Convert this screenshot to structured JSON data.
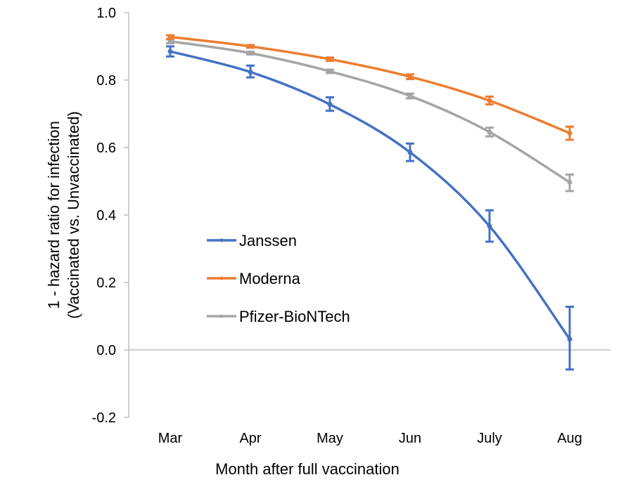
{
  "chart_data": {
    "type": "line",
    "title": "",
    "xlabel": "Month after full vaccination",
    "ylabel_line1": "1 - hazard ratio for infection",
    "ylabel_line2": "(Vaccinated vs. Unvaccinated)",
    "categories": [
      "Mar",
      "Apr",
      "May",
      "Jun",
      "July",
      "Aug"
    ],
    "ylim": [
      -0.2,
      1.0
    ],
    "yticks": [
      -0.2,
      0.0,
      0.2,
      0.4,
      0.6,
      0.8,
      1.0
    ],
    "ytick_labels": [
      "-0.2",
      "0.0",
      "0.2",
      "0.4",
      "0.6",
      "0.8",
      "1.0"
    ],
    "grid": false,
    "legend_position": "center-left",
    "series": [
      {
        "name": "Janssen",
        "color": "#4472C4",
        "values": [
          0.885,
          0.824,
          0.728,
          0.586,
          0.367,
          0.032
        ],
        "err_low": [
          0.87,
          0.808,
          0.709,
          0.56,
          0.321,
          -0.058
        ],
        "err_high": [
          0.9,
          0.843,
          0.749,
          0.612,
          0.414,
          0.128
        ]
      },
      {
        "name": "Moderna",
        "color": "#ED7D31",
        "values": [
          0.928,
          0.9,
          0.862,
          0.81,
          0.739,
          0.643
        ],
        "err_low": [
          0.922,
          0.896,
          0.857,
          0.803,
          0.728,
          0.623
        ],
        "err_high": [
          0.933,
          0.904,
          0.867,
          0.817,
          0.751,
          0.662
        ]
      },
      {
        "name": "Pfizer-BioNTech",
        "color": "#A5A5A5",
        "values": [
          0.915,
          0.88,
          0.826,
          0.753,
          0.646,
          0.497
        ],
        "err_low": [
          0.909,
          0.876,
          0.821,
          0.746,
          0.633,
          0.471
        ],
        "err_high": [
          0.921,
          0.884,
          0.831,
          0.76,
          0.659,
          0.52
        ]
      }
    ],
    "axis_color": "#BFBFBF"
  }
}
